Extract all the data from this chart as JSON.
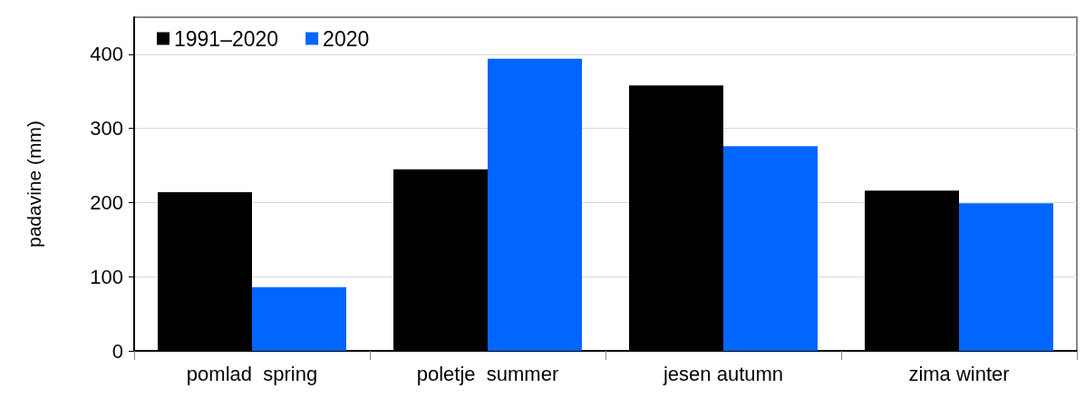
{
  "chart_data": {
    "type": "bar",
    "ylabel": "padavine (mm)",
    "categories": [
      "pomlad  spring",
      "poletje  summer",
      "jesen autumn",
      "zima winter"
    ],
    "series": [
      {
        "name": "1991–2020",
        "color": "#000000",
        "values": [
          214,
          245,
          358,
          216
        ]
      },
      {
        "name": "2020",
        "color": "#0066ff",
        "values": [
          86,
          394,
          276,
          199
        ]
      }
    ],
    "ylim": [
      0,
      450
    ],
    "yticks": [
      0,
      100,
      200,
      300,
      400
    ],
    "grid": "y",
    "legend": "top left"
  }
}
